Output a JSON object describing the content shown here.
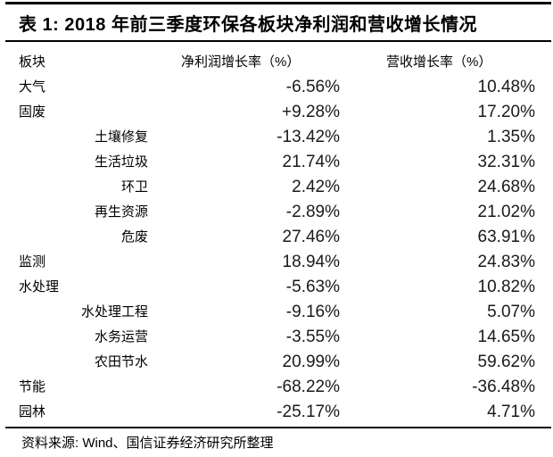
{
  "title": "表 1: 2018 年前三季度环保各板块净利润和营收增长情况",
  "table": {
    "headers": [
      "板块",
      "净利润增长率（%）",
      "营收增长率（%）"
    ],
    "rows": [
      {
        "name": "大气",
        "level": 0,
        "net_profit": "-6.56%",
        "revenue": "10.48%"
      },
      {
        "name": "固废",
        "level": 0,
        "net_profit": "+9.28%",
        "revenue": "17.20%"
      },
      {
        "name": "土壤修复",
        "level": 1,
        "net_profit": "-13.42%",
        "revenue": "1.35%"
      },
      {
        "name": "生活垃圾",
        "level": 1,
        "net_profit": "21.74%",
        "revenue": "32.31%"
      },
      {
        "name": "环卫",
        "level": 1,
        "net_profit": "2.42%",
        "revenue": "24.68%"
      },
      {
        "name": "再生资源",
        "level": 1,
        "net_profit": "-2.89%",
        "revenue": "21.02%"
      },
      {
        "name": "危废",
        "level": 1,
        "net_profit": "27.46%",
        "revenue": "63.91%"
      },
      {
        "name": "监测",
        "level": 0,
        "net_profit": "18.94%",
        "revenue": "24.83%"
      },
      {
        "name": "水处理",
        "level": 0,
        "net_profit": "-5.63%",
        "revenue": "10.82%"
      },
      {
        "name": "水处理工程",
        "level": 1,
        "net_profit": "-9.16%",
        "revenue": "5.07%"
      },
      {
        "name": "水务运营",
        "level": 1,
        "net_profit": "-3.55%",
        "revenue": "14.65%"
      },
      {
        "name": "农田节水",
        "level": 1,
        "net_profit": "20.99%",
        "revenue": "59.62%"
      },
      {
        "name": "节能",
        "level": 0,
        "net_profit": "-68.22%",
        "revenue": "-36.48%"
      },
      {
        "name": "园林",
        "level": 0,
        "net_profit": "-25.17%",
        "revenue": "4.71%"
      }
    ]
  },
  "footer": "资料来源: Wind、国信证券经济研究所整理",
  "colors": {
    "background": "#ffffff",
    "text": "#000000",
    "number_text": "#1a1a1a",
    "rule": "#000000"
  }
}
